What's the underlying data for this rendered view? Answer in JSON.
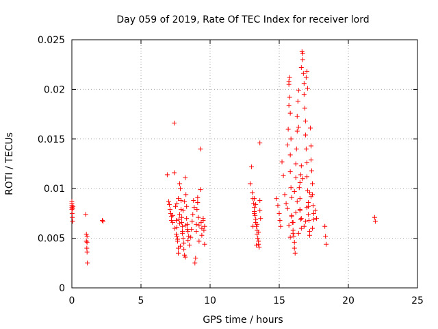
{
  "chart_data": {
    "type": "scatter",
    "title": "Day 059 of 2019, Rate Of TEC Index for receiver lord",
    "xlabel": "GPS time / hours",
    "ylabel": "ROTI / TECUs",
    "xlim": [
      0,
      25
    ],
    "ylim": [
      0,
      0.025
    ],
    "xticks": [
      "0",
      "5",
      "10",
      "15",
      "20",
      "25"
    ],
    "yticks": [
      "0",
      "0.005",
      "0.01",
      "0.015",
      "0.02",
      "0.025"
    ],
    "grid": true,
    "marker": "plus",
    "color": "#ff0000",
    "x": [
      0.0,
      0.0,
      0.0,
      0.0,
      0.0,
      0.02,
      0.03,
      0.05,
      0.05,
      0.08,
      1.0,
      1.05,
      1.05,
      1.1,
      1.08,
      1.1,
      1.12,
      1.1,
      2.2,
      2.25,
      6.9,
      7.0,
      7.05,
      7.1,
      7.15,
      7.2,
      7.2,
      7.3,
      7.3,
      7.4,
      7.4,
      7.5,
      7.55,
      7.6,
      7.6,
      7.65,
      7.7,
      7.7,
      7.75,
      7.8,
      7.8,
      7.85,
      7.9,
      7.9,
      7.95,
      8.0,
      8.0,
      8.05,
      8.1,
      8.1,
      8.15,
      8.2,
      8.2,
      8.25,
      8.3,
      8.3,
      8.35,
      8.4,
      8.4,
      8.5,
      8.6,
      8.65,
      8.7,
      8.75,
      8.8,
      8.85,
      8.9,
      8.95,
      9.0,
      9.0,
      9.05,
      9.1,
      9.1,
      9.15,
      9.2,
      9.2,
      9.3,
      9.3,
      9.35,
      9.4,
      9.4,
      9.5,
      9.5,
      9.55,
      9.6,
      9.6,
      7.45,
      7.55,
      7.65,
      7.85,
      7.95,
      8.05,
      8.15,
      8.25,
      8.35,
      8.45,
      7.6,
      7.7,
      7.8,
      8.0,
      12.9,
      13.0,
      13.05,
      13.1,
      13.15,
      13.2,
      13.2,
      13.25,
      13.3,
      13.3,
      13.35,
      13.4,
      13.4,
      13.45,
      13.5,
      13.5,
      13.55,
      13.6,
      13.6,
      13.65,
      13.1,
      13.2,
      13.3,
      13.4,
      13.5,
      13.2,
      13.6,
      13.35,
      14.8,
      14.9,
      15.0,
      15.05,
      15.1,
      15.2,
      15.3,
      15.4,
      15.5,
      15.6,
      15.6,
      15.65,
      15.7,
      15.7,
      15.75,
      15.8,
      15.8,
      15.85,
      15.9,
      15.9,
      15.95,
      16.0,
      16.0,
      16.05,
      16.1,
      16.1,
      16.15,
      16.2,
      16.2,
      16.25,
      16.3,
      16.3,
      16.35,
      16.4,
      16.4,
      16.45,
      16.5,
      16.5,
      16.55,
      16.6,
      16.6,
      16.65,
      16.7,
      16.7,
      16.75,
      16.8,
      16.8,
      16.85,
      16.9,
      16.9,
      16.95,
      17.0,
      17.0,
      17.05,
      17.1,
      17.1,
      17.15,
      17.2,
      17.2,
      17.25,
      17.3,
      17.3,
      17.35,
      17.4,
      17.4,
      17.45,
      17.5,
      17.5,
      17.6,
      17.7,
      15.7,
      15.75,
      15.8,
      15.85,
      16.5,
      16.55,
      16.6,
      16.95,
      17.0,
      17.05,
      15.7,
      15.9,
      16.1,
      16.3,
      16.5,
      16.7,
      16.9,
      17.1,
      17.3,
      15.8,
      16.0,
      16.2,
      16.4,
      16.6,
      16.8,
      17.0,
      17.2,
      17.4,
      18.3,
      18.35,
      18.4,
      21.9,
      21.95
    ],
    "y": [
      0.0087,
      0.0085,
      0.0083,
      0.0081,
      0.0079,
      0.0075,
      0.0071,
      0.0067,
      0.008,
      0.0082,
      0.0074,
      0.0054,
      0.0047,
      0.0046,
      0.004,
      0.0036,
      0.0025,
      0.0052,
      0.0068,
      0.0067,
      0.0114,
      0.0087,
      0.0084,
      0.0079,
      0.0075,
      0.0072,
      0.0068,
      0.0066,
      0.0073,
      0.0166,
      0.0116,
      0.0082,
      0.0068,
      0.0061,
      0.0052,
      0.0047,
      0.004,
      0.0035,
      0.0069,
      0.0074,
      0.0105,
      0.01,
      0.0088,
      0.0079,
      0.0066,
      0.0062,
      0.0055,
      0.005,
      0.0045,
      0.0039,
      0.0033,
      0.0031,
      0.0111,
      0.0094,
      0.0082,
      0.007,
      0.0064,
      0.0057,
      0.0048,
      0.0043,
      0.0051,
      0.0059,
      0.0067,
      0.0074,
      0.0088,
      0.0081,
      0.0025,
      0.003,
      0.0057,
      0.0064,
      0.0079,
      0.0086,
      0.0091,
      0.0071,
      0.0063,
      0.0047,
      0.014,
      0.0099,
      0.0066,
      0.006,
      0.0053,
      0.007,
      0.0068,
      0.0058,
      0.0062,
      0.0044,
      0.006,
      0.0054,
      0.0049,
      0.0042,
      0.0071,
      0.0078,
      0.0087,
      0.0063,
      0.0059,
      0.0052,
      0.0085,
      0.009,
      0.0065,
      0.0057,
      0.0105,
      0.0122,
      0.0096,
      0.009,
      0.0085,
      0.0081,
      0.0077,
      0.0073,
      0.0069,
      0.0066,
      0.0062,
      0.0058,
      0.0054,
      0.005,
      0.0047,
      0.0044,
      0.0041,
      0.0146,
      0.0088,
      0.007,
      0.0062,
      0.0075,
      0.0084,
      0.0064,
      0.0056,
      0.009,
      0.0078,
      0.0043,
      0.009,
      0.0083,
      0.0075,
      0.0068,
      0.0062,
      0.0127,
      0.0113,
      0.0094,
      0.0085,
      0.008,
      0.0144,
      0.016,
      0.0184,
      0.0205,
      0.0212,
      0.0134,
      0.0117,
      0.0101,
      0.0091,
      0.0072,
      0.0066,
      0.0058,
      0.0055,
      0.0052,
      0.0046,
      0.004,
      0.0035,
      0.0111,
      0.0125,
      0.014,
      0.0158,
      0.0173,
      0.0188,
      0.0199,
      0.0162,
      0.0101,
      0.009,
      0.0078,
      0.0069,
      0.006,
      0.0222,
      0.0238,
      0.0236,
      0.023,
      0.0216,
      0.0206,
      0.0195,
      0.0181,
      0.0168,
      0.0154,
      0.014,
      0.0126,
      0.0112,
      0.0098,
      0.0086,
      0.0074,
      0.0068,
      0.0057,
      0.0053,
      0.0161,
      0.0143,
      0.0129,
      0.0118,
      0.0105,
      0.0094,
      0.0083,
      0.0075,
      0.0069,
      0.0078,
      0.007,
      0.0208,
      0.0192,
      0.0176,
      0.015,
      0.0106,
      0.0114,
      0.0123,
      0.0212,
      0.0218,
      0.0201,
      0.0063,
      0.0073,
      0.0097,
      0.0087,
      0.0079,
      0.011,
      0.0067,
      0.0082,
      0.0092,
      0.0051,
      0.0066,
      0.0076,
      0.0055,
      0.007,
      0.0062,
      0.0081,
      0.0096,
      0.006,
      0.0062,
      0.0052,
      0.0044,
      0.0071,
      0.0067
    ]
  }
}
